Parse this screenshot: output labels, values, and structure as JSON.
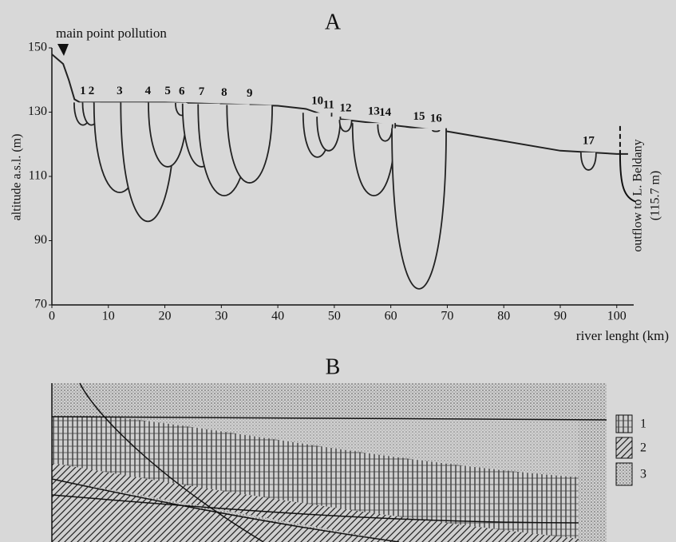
{
  "chart_data": {
    "type": "line",
    "title": "A",
    "x_label": "river lenght (km)",
    "y_label": "altitude a.s.l. (m)",
    "annotations": [
      "main point pollution",
      "outflow to L. Beldany",
      "(115.7 m)"
    ],
    "xlim": [
      0,
      103
    ],
    "ylim": [
      70,
      150
    ],
    "xticks": [
      0,
      10,
      20,
      30,
      40,
      50,
      60,
      70,
      80,
      90,
      100
    ],
    "yticks": [
      70,
      90,
      110,
      130,
      150
    ],
    "color": "#222222",
    "x": [
      0,
      2,
      3,
      4,
      5,
      20,
      40,
      45,
      50,
      60,
      70,
      80,
      90,
      100,
      102
    ],
    "values": [
      148,
      145,
      140,
      134,
      133,
      133,
      132,
      131,
      128,
      126,
      124,
      121,
      118,
      117,
      117
    ],
    "lakes": {
      "labels": [
        "1",
        "2",
        "3",
        "4",
        "5",
        "6",
        "7",
        "8",
        "9",
        "10",
        "11",
        "12",
        "13",
        "14",
        "15",
        "16",
        "17"
      ],
      "x": [
        5.5,
        7,
        12,
        17,
        20.5,
        23,
        26.5,
        30.5,
        35,
        47,
        49,
        52,
        57,
        59,
        65,
        68,
        95
      ],
      "bottoms": [
        126,
        126,
        105,
        96,
        113,
        129,
        113,
        104,
        108,
        116,
        118,
        124,
        104,
        121,
        75,
        124,
        112
      ]
    }
  },
  "panel_b": {
    "title": "B",
    "legend": [
      "1",
      "2",
      "3"
    ]
  }
}
